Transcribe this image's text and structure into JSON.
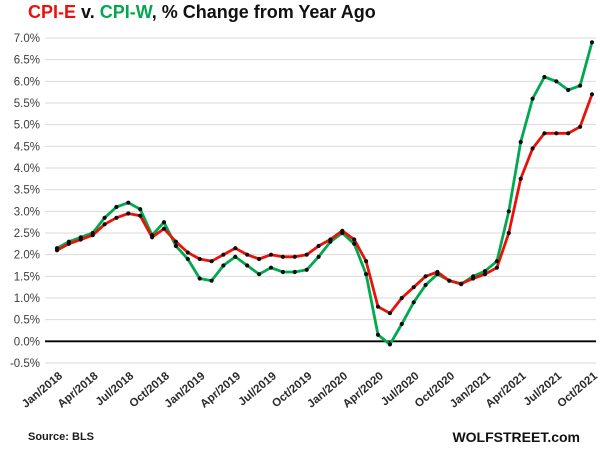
{
  "title": {
    "series1": "CPI-E",
    "connector": " v. ",
    "series2": "CPI-W",
    "suffix": ", % Change from Year Ago"
  },
  "footer": {
    "source": "Source: BLS",
    "brand": "WOLFSTREET.com"
  },
  "colors": {
    "cpi_e": "#e8120b",
    "cpi_w": "#00a94f",
    "marker": "#0d0d0d",
    "grid": "#d9d9d9",
    "zero_line": "#000000",
    "axis_text": "#3c3c3c"
  },
  "chart_data": {
    "type": "line",
    "title": "CPI-E v. CPI-W, % Change from Year Ago",
    "xlabel": "",
    "ylabel": "",
    "ylim": [
      -0.5,
      7.0
    ],
    "ytick_step": 0.5,
    "grid": "horizontal-only",
    "legend": "in-title-colors",
    "y_tick_labels": [
      "7.0%",
      "6.5%",
      "6.0%",
      "5.5%",
      "5.0%",
      "4.5%",
      "4.0%",
      "3.5%",
      "3.0%",
      "2.5%",
      "2.0%",
      "1.5%",
      "1.0%",
      "0.5%",
      "0.0%",
      "-0.5%"
    ],
    "x_tick_every": 3,
    "x_tick_labels": [
      "Jan/2018",
      "Apr/2018",
      "Jul/2018",
      "Oct/2018",
      "Jan/2019",
      "Apr/2019",
      "Jul/2019",
      "Oct/2019",
      "Jan/2020",
      "Apr/2020",
      "Jul/2020",
      "Oct/2020",
      "Jan/2021",
      "Apr/2021",
      "Jul/2021",
      "Oct/2021"
    ],
    "x": [
      "Jan/2018",
      "Feb/2018",
      "Mar/2018",
      "Apr/2018",
      "May/2018",
      "Jun/2018",
      "Jul/2018",
      "Aug/2018",
      "Sep/2018",
      "Oct/2018",
      "Nov/2018",
      "Dec/2018",
      "Jan/2019",
      "Feb/2019",
      "Mar/2019",
      "Apr/2019",
      "May/2019",
      "Jun/2019",
      "Jul/2019",
      "Aug/2019",
      "Sep/2019",
      "Oct/2019",
      "Nov/2019",
      "Dec/2019",
      "Jan/2020",
      "Feb/2020",
      "Mar/2020",
      "Apr/2020",
      "May/2020",
      "Jun/2020",
      "Jul/2020",
      "Aug/2020",
      "Sep/2020",
      "Oct/2020",
      "Nov/2020",
      "Dec/2020",
      "Jan/2021",
      "Feb/2021",
      "Mar/2021",
      "Apr/2021",
      "May/2021",
      "Jun/2021",
      "Jul/2021",
      "Aug/2021",
      "Sep/2021",
      "Oct/2021"
    ],
    "series": [
      {
        "name": "CPI-W",
        "color_key": "cpi_w",
        "values": [
          2.15,
          2.3,
          2.4,
          2.5,
          2.85,
          3.1,
          3.2,
          3.05,
          2.45,
          2.75,
          2.2,
          1.9,
          1.45,
          1.4,
          1.75,
          1.95,
          1.75,
          1.55,
          1.7,
          1.6,
          1.6,
          1.65,
          1.95,
          2.3,
          2.5,
          2.25,
          1.55,
          0.15,
          -0.07,
          0.4,
          0.9,
          1.3,
          1.55,
          1.4,
          1.32,
          1.5,
          1.62,
          1.85,
          3.0,
          4.6,
          5.6,
          6.1,
          6.0,
          5.8,
          5.9,
          6.9
        ]
      },
      {
        "name": "CPI-E",
        "color_key": "cpi_e",
        "values": [
          2.1,
          2.25,
          2.35,
          2.45,
          2.7,
          2.85,
          2.95,
          2.9,
          2.4,
          2.6,
          2.3,
          2.05,
          1.9,
          1.85,
          2.0,
          2.15,
          2.0,
          1.9,
          2.0,
          1.95,
          1.95,
          2.0,
          2.2,
          2.35,
          2.55,
          2.35,
          1.85,
          0.8,
          0.65,
          1.0,
          1.25,
          1.5,
          1.6,
          1.4,
          1.33,
          1.45,
          1.55,
          1.7,
          2.5,
          3.75,
          4.45,
          4.8,
          4.8,
          4.8,
          4.95,
          5.7
        ]
      }
    ]
  }
}
